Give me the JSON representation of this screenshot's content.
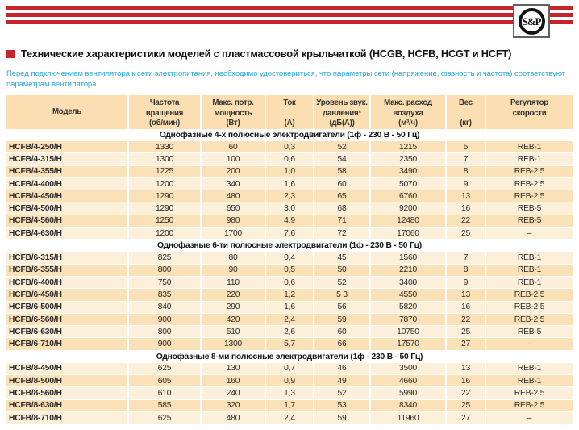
{
  "colors": {
    "accent_red": "#c5242b",
    "intro_blue": "#2aa9e0",
    "header_bg": "#fbdfb3",
    "row_dark": "#fae1b8",
    "row_light": "#fdf0da",
    "text_dark": "#2b2b2b"
  },
  "logo": {
    "text": "S&P"
  },
  "title": {
    "text": "Технические характеристики моделей с пластмассовой крыльчаткой (HCGB, HCFB, HCGT и HCFT)"
  },
  "intro": {
    "text": "Перед подключением вентилятора к сети электропитания, необходимо удостовериться, что параметры сети (напряжение, фазность и частота) соответствуют параметрам вентилятора."
  },
  "table": {
    "columns": [
      {
        "name": "model",
        "lines": [
          "Модель"
        ]
      },
      {
        "name": "rpm",
        "lines": [
          "Частота",
          "вращения",
          "(об/мин)"
        ]
      },
      {
        "name": "power",
        "lines": [
          "Макс. потр.",
          "мощность",
          "(Вт)"
        ]
      },
      {
        "name": "current",
        "lines": [
          "Ток",
          "",
          "(А)"
        ]
      },
      {
        "name": "noise",
        "lines": [
          "Уровень звук.",
          "давления*",
          "(дБ(А))"
        ]
      },
      {
        "name": "airflow",
        "lines": [
          "Макс. расход",
          "воздуха",
          "(м³/ч)"
        ]
      },
      {
        "name": "weight",
        "lines": [
          "Вес",
          "",
          "(кг)"
        ]
      },
      {
        "name": "controller",
        "lines": [
          "Регулятор",
          "скорости"
        ]
      }
    ],
    "sections": [
      {
        "title": "Однофазные 4-х полюсные электродвигатели (1ф - 230 В - 50 Гц)",
        "start_shade": "dark",
        "rows": [
          [
            "HCFB/4-250/H",
            "1330",
            "60",
            "0,3",
            "52",
            "1215",
            "5",
            "REB-1"
          ],
          [
            "HCFB/4-315/H",
            "1300",
            "100",
            "0,6",
            "54",
            "2350",
            "7",
            "REB-1"
          ],
          [
            "HCFB/4-355/H",
            "1225",
            "200",
            "1,0",
            "58",
            "3490",
            "8",
            "REB-2,5"
          ],
          [
            "HCFB/4-400/H",
            "1200",
            "340",
            "1,6",
            "60",
            "5070",
            "9",
            "REB-2,5"
          ],
          [
            "HCFB/4-450/H",
            "1290",
            "480",
            "2,3",
            "65",
            "6760",
            "13",
            "REB-2,5"
          ],
          [
            "HCFB/4-500/H",
            "1290",
            "650",
            "3,0",
            "68",
            "9200",
            "16",
            "REB-5"
          ],
          [
            "HCFB/4-560/H",
            "1250",
            "980",
            "4,9",
            "71",
            "12480",
            "22",
            "REB-5"
          ],
          [
            "HCFB/4-630/H",
            "1200",
            "1700",
            "7,6",
            "72",
            "17060",
            "25",
            "–"
          ]
        ]
      },
      {
        "title": "Однофазные 6-ти полюсные электродвигатели (1ф - 230 В - 50 Гц)",
        "start_shade": "light",
        "rows": [
          [
            "HCFB/6-315/H",
            "825",
            "80",
            "0,4",
            "45",
            "1560",
            "7",
            "REB-1"
          ],
          [
            "HCFB/6-355/H",
            "800",
            "90",
            "0,5",
            "50",
            "2210",
            "8",
            "REB-1"
          ],
          [
            "HCFB/6-400/H",
            "750",
            "110",
            "0,6",
            "52",
            "3400",
            "9",
            "REB-1"
          ],
          [
            "HCFB/6-450/H",
            "835",
            "220",
            "1,2",
            "5 3",
            "4550",
            "13",
            "REB-2,5"
          ],
          [
            "HCFB/6-500/H",
            "840",
            "290",
            "1,6",
            "56",
            "5820",
            "16",
            "REB-2,5"
          ],
          [
            "HCFB/6-560/H",
            "900",
            "420",
            "2,4",
            "59",
            "7870",
            "22",
            "REB-2,5"
          ],
          [
            "HCFB/6-630/H",
            "800",
            "510",
            "2,6",
            "60",
            "10750",
            "25",
            "REB-5"
          ],
          [
            "HCFB/6-710/H",
            "900",
            "1300",
            "5,7",
            "66",
            "17570",
            "27",
            "–"
          ]
        ]
      },
      {
        "title": "Однофазные 8-ми полюсные электродвигатели (1ф - 230 В - 50 Гц)",
        "start_shade": "light",
        "rows": [
          [
            "HCFB/8-450/H",
            "625",
            "130",
            "0,7",
            "46",
            "3500",
            "13",
            "REB-1"
          ],
          [
            "HCFB/8-500/H",
            "605",
            "160",
            "0,9",
            "49",
            "4660",
            "16",
            "REB-1"
          ],
          [
            "HCFB/8-560/H",
            "610",
            "240",
            "1,3",
            "52",
            "5990",
            "22",
            "REB-2,5"
          ],
          [
            "HCFB/8-630/H",
            "585",
            "320",
            "1,7",
            "53",
            "8340",
            "25",
            "REB-2,5"
          ],
          [
            "HCFB/8-710/H",
            "625",
            "480",
            "2,4",
            "59",
            "11960",
            "27",
            "–"
          ]
        ]
      }
    ]
  }
}
